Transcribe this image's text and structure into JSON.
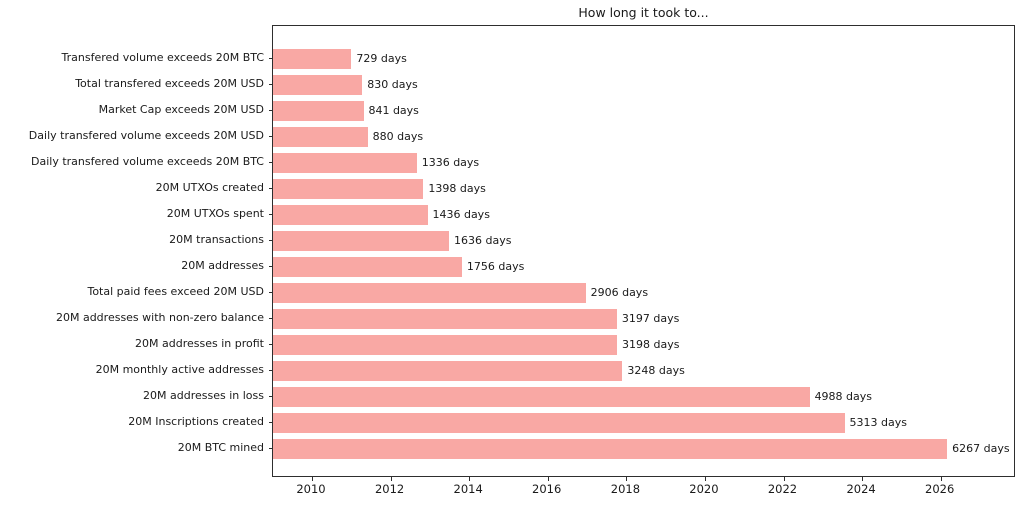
{
  "chart_data": {
    "type": "bar",
    "orientation": "horizontal",
    "title": "How long it took to...",
    "categories": [
      "Transfered volume exceeds 20M BTC",
      "Total transfered exceeds 20M USD",
      "Market Cap exceeds 20M USD",
      "Daily transfered volume exceeds 20M USD",
      "Daily transfered volume exceeds 20M BTC",
      "20M UTXOs created",
      "20M UTXOs spent",
      "20M transactions",
      "20M addresses",
      "Total paid fees exceed 20M USD",
      "20M addresses with non-zero balance",
      "20M addresses in profit",
      "20M monthly active addresses",
      "20M addresses in loss",
      "20M Inscriptions created",
      "20M BTC mined"
    ],
    "values": [
      729,
      830,
      841,
      880,
      1336,
      1398,
      1436,
      1636,
      1756,
      2906,
      3197,
      3198,
      3248,
      4988,
      5313,
      6267
    ],
    "value_labels": [
      "729 days",
      "830 days",
      "841 days",
      "880 days",
      "1336 days",
      "1398 days",
      "1436 days",
      "1636 days",
      "1756 days",
      "2906 days",
      "3197 days",
      "3198 days",
      "3248 days",
      "4988 days",
      "5313 days",
      "6267 days"
    ],
    "xlabel": "",
    "ylabel": "",
    "x_axis": {
      "tick_labels": [
        "2010",
        "2012",
        "2014",
        "2016",
        "2018",
        "2020",
        "2022",
        "2024",
        "2026"
      ],
      "tick_positions_days": [
        363,
        1093,
        1824,
        2554,
        3285,
        4015,
        4746,
        5476,
        6207
      ],
      "xlim_days": [
        0,
        6907
      ]
    },
    "grid": false,
    "legend": null,
    "bar_color": "#f9a8a4",
    "axis_color": "#2e2e2e",
    "text_color": "#1a1a1a"
  }
}
